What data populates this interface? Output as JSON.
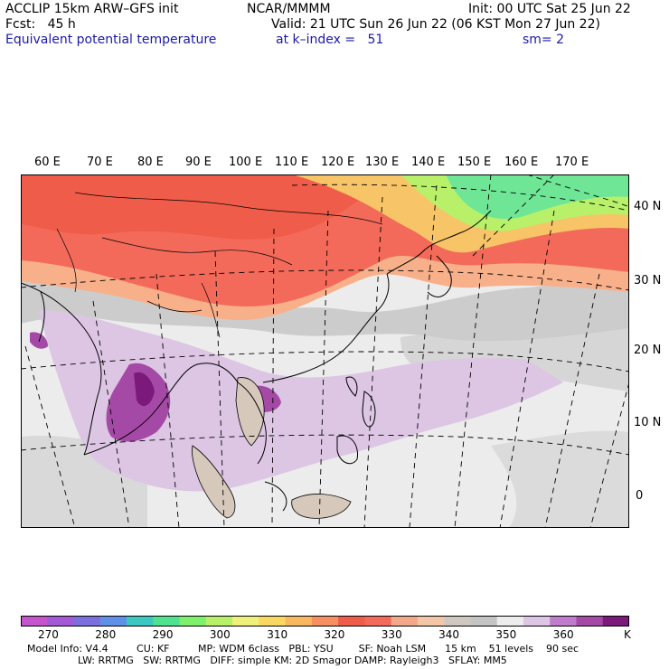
{
  "header": {
    "model": "ACCLIP 15km ARW–GFS init",
    "org": "NCAR/MMMM",
    "init": "Init: 00 UTC Sat 25 Jun 22",
    "fcst": "Fcst:   45 h",
    "valid": "Valid: 21 UTC Sun 26 Jun 22 (06 KST Mon 27 Jun 22)",
    "field": "Equivalent potential temperature",
    "kindex": "at k–index =   51",
    "smooth": "sm= 2"
  },
  "map": {
    "lon_labels": [
      "60 E",
      "70 E",
      "80 E",
      "90 E",
      "100 E",
      "110 E",
      "120 E",
      "130 E",
      "140 E",
      "150 E",
      "160 E",
      "170 E"
    ],
    "lat_labels": [
      "40 N",
      "30 N",
      "20 N",
      "10 N",
      "0"
    ],
    "colors": {
      "ocean_bg": "#ececec",
      "land_outline": "#000000"
    }
  },
  "colorbar": {
    "ticks": [
      "270",
      "280",
      "290",
      "300",
      "310",
      "320",
      "330",
      "340",
      "350",
      "360"
    ],
    "unit": "K",
    "colors": [
      "#c455cc",
      "#a45ad6",
      "#7b6fde",
      "#5f8fe6",
      "#3cc8c0",
      "#4fe28f",
      "#7ef06c",
      "#b8f06a",
      "#eef07a",
      "#f8d860",
      "#f7b860",
      "#f79060",
      "#f05c4a",
      "#f36a5a",
      "#f4a88a",
      "#f4c6a8",
      "#d0c8c0",
      "#c4c4c4",
      "#ececec",
      "#dcc6e4",
      "#c07ccc",
      "#a44aa6",
      "#7c1a7c"
    ]
  },
  "footer": {
    "line1": "Model Info: V4.4         CU: KF         MP: WDM 6class   PBL: YSU        SF: Noah LSM      15 km    51 levels    90 sec",
    "line2": "                LW: RRTMG   SW: RRTMG   DIFF: simple KM: 2D Smagor DAMP: Rayleigh3   SFLAY: MM5"
  }
}
